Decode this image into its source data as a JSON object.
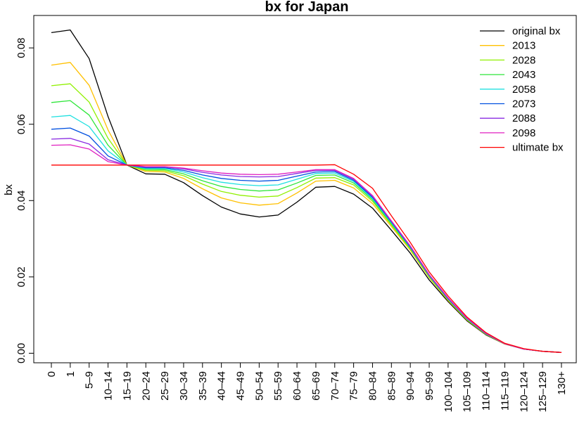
{
  "chart_data": {
    "type": "line",
    "title": "bx for Japan",
    "xlabel": "",
    "ylabel": "bx",
    "ylim": [
      -0.0025,
      0.0885
    ],
    "yticks": [
      0.0,
      0.02,
      0.04,
      0.06,
      0.08
    ],
    "ytick_labels": [
      "0.00",
      "0.02",
      "0.04",
      "0.06",
      "0.08"
    ],
    "categories": [
      "0",
      "1",
      "5–9",
      "10–14",
      "15–19",
      "20–24",
      "25–29",
      "30–34",
      "35–39",
      "40–44",
      "45–49",
      "50–54",
      "55–59",
      "60–64",
      "65–69",
      "70–74",
      "75–79",
      "80–84",
      "85–89",
      "90–94",
      "95–99",
      "100–104",
      "105–109",
      "110–114",
      "115–119",
      "120–124",
      "125–129",
      "130+"
    ],
    "grid": false,
    "legend_position": "top-right",
    "series": [
      {
        "name": "original bx",
        "color": "#000000",
        "values": [
          0.084,
          0.0847,
          0.0772,
          0.062,
          0.0493,
          0.047,
          0.0469,
          0.0447,
          0.0413,
          0.0383,
          0.0365,
          0.0357,
          0.0362,
          0.0396,
          0.0435,
          0.0437,
          0.0417,
          0.038,
          0.0322,
          0.0262,
          0.0192,
          0.0135,
          0.0085,
          0.0048,
          0.0024,
          0.0011,
          0.0005,
          0.0002
        ]
      },
      {
        "name": "2013",
        "color": "#FFC000",
        "values": [
          0.0755,
          0.0762,
          0.0702,
          0.0585,
          0.0493,
          0.0476,
          0.0475,
          0.0458,
          0.0431,
          0.0407,
          0.0394,
          0.0388,
          0.0392,
          0.042,
          0.0451,
          0.0453,
          0.0433,
          0.0392,
          0.0332,
          0.027,
          0.0198,
          0.0138,
          0.0087,
          0.0049,
          0.0024,
          0.0011,
          0.0005,
          0.0002
        ]
      },
      {
        "name": "2028",
        "color": "#90F000",
        "values": [
          0.0701,
          0.0706,
          0.0658,
          0.0563,
          0.0493,
          0.0479,
          0.0478,
          0.0465,
          0.0443,
          0.0424,
          0.0414,
          0.0409,
          0.0412,
          0.0434,
          0.0459,
          0.046,
          0.0441,
          0.0398,
          0.0336,
          0.0273,
          0.02,
          0.014,
          0.0088,
          0.005,
          0.0025,
          0.0011,
          0.0005,
          0.0002
        ]
      },
      {
        "name": "2043",
        "color": "#2EE63A",
        "values": [
          0.0657,
          0.0662,
          0.0624,
          0.0545,
          0.0493,
          0.0482,
          0.0481,
          0.047,
          0.0452,
          0.0437,
          0.0429,
          0.0425,
          0.0428,
          0.0446,
          0.0466,
          0.0467,
          0.0446,
          0.0402,
          0.0339,
          0.0275,
          0.0202,
          0.0141,
          0.0089,
          0.005,
          0.0025,
          0.0011,
          0.0005,
          0.0002
        ]
      },
      {
        "name": "2058",
        "color": "#20E0E0",
        "values": [
          0.0619,
          0.0623,
          0.0594,
          0.053,
          0.0493,
          0.0484,
          0.0484,
          0.0475,
          0.046,
          0.0448,
          0.0442,
          0.0439,
          0.0441,
          0.0456,
          0.0471,
          0.0472,
          0.045,
          0.0405,
          0.0342,
          0.0277,
          0.0203,
          0.0142,
          0.009,
          0.0051,
          0.0025,
          0.0011,
          0.0005,
          0.0002
        ]
      },
      {
        "name": "2073",
        "color": "#0050E0",
        "values": [
          0.0587,
          0.059,
          0.0569,
          0.0517,
          0.0493,
          0.0486,
          0.0486,
          0.0479,
          0.0467,
          0.0458,
          0.0453,
          0.0451,
          0.0453,
          0.0464,
          0.0475,
          0.0476,
          0.0453,
          0.0408,
          0.0344,
          0.0278,
          0.0204,
          0.0143,
          0.0091,
          0.0051,
          0.0025,
          0.0011,
          0.0005,
          0.0002
        ]
      },
      {
        "name": "2088",
        "color": "#8A2BE2",
        "values": [
          0.0561,
          0.0563,
          0.0548,
          0.0507,
          0.0493,
          0.0488,
          0.0488,
          0.0483,
          0.0474,
          0.0467,
          0.0463,
          0.0462,
          0.0463,
          0.0471,
          0.0479,
          0.0479,
          0.0456,
          0.0411,
          0.0346,
          0.028,
          0.0205,
          0.0144,
          0.0091,
          0.0052,
          0.0025,
          0.0011,
          0.0005,
          0.0002
        ]
      },
      {
        "name": "2098",
        "color": "#E020C0",
        "values": [
          0.0545,
          0.0546,
          0.0535,
          0.0502,
          0.0493,
          0.0489,
          0.0489,
          0.0485,
          0.0478,
          0.0472,
          0.0469,
          0.0468,
          0.0469,
          0.0475,
          0.0481,
          0.0481,
          0.0458,
          0.0413,
          0.0347,
          0.0281,
          0.0206,
          0.0145,
          0.0092,
          0.0052,
          0.0025,
          0.0011,
          0.0005,
          0.0002
        ]
      },
      {
        "name": "ultimate bx",
        "color": "#FF0000",
        "values": [
          0.0493,
          0.0493,
          0.0493,
          0.0493,
          0.0493,
          0.0493,
          0.0493,
          0.0493,
          0.0493,
          0.0493,
          0.0493,
          0.0493,
          0.0493,
          0.0493,
          0.0493,
          0.0494,
          0.0469,
          0.0432,
          0.036,
          0.029,
          0.0213,
          0.015,
          0.0095,
          0.0054,
          0.0026,
          0.0012,
          0.0005,
          0.0002
        ]
      }
    ]
  }
}
